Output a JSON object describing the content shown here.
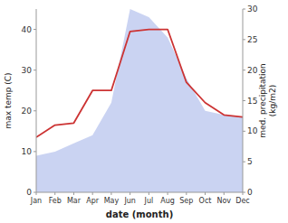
{
  "chart_data": {
    "type": "line",
    "categories": [
      "Jan",
      "Feb",
      "Mar",
      "Apr",
      "May",
      "Jun",
      "Jul",
      "Aug",
      "Sep",
      "Oct",
      "Nov",
      "Dec"
    ],
    "series": [
      {
        "type": "area",
        "color": "#b8c4ee",
        "values": [
          9.0,
          10.0,
          12.0,
          14.0,
          22.0,
          45.0,
          43.0,
          38.0,
          28.0,
          20.0,
          19.0,
          18.5
        ]
      },
      {
        "type": "line",
        "color": "#cc3333",
        "values": [
          13.5,
          16.5,
          17.0,
          25.0,
          25.0,
          39.5,
          40.0,
          40.0,
          27.0,
          22.0,
          19.0,
          18.5
        ]
      }
    ],
    "xlabel": "date (month)",
    "ylabel": "max temp (C)",
    "y2label": "med. precipitation\n(kg/m2)",
    "ylim": [
      0,
      45
    ],
    "yticks": [
      0,
      10,
      20,
      30,
      40
    ],
    "y2lim": [
      0,
      30
    ],
    "y2ticks": [
      0,
      5,
      10,
      15,
      20,
      25,
      30
    ],
    "grid": false
  }
}
